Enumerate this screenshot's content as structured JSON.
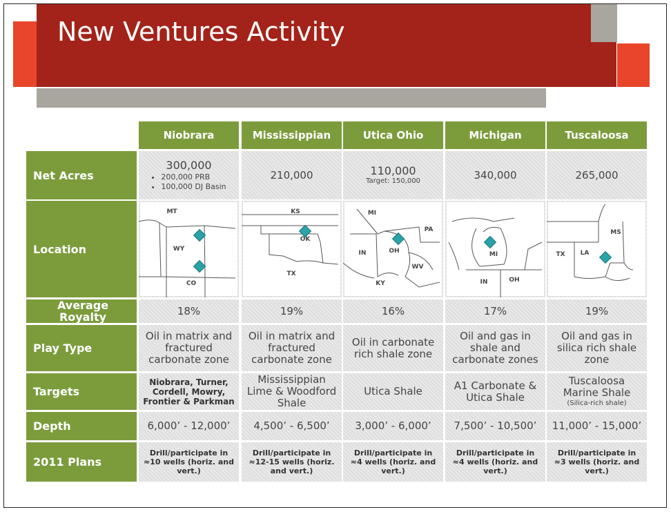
{
  "title": "New Ventures Activity",
  "table": {
    "columns": [
      "Niobrara",
      "Mississippian",
      "Utica Ohio",
      "Michigan",
      "Tuscaloosa"
    ],
    "rows": [
      {
        "label": "Net Acres",
        "cells": [
          {
            "main": "300,000",
            "notes": [
              "200,000 PRB",
              "100,000 DJ Basin"
            ]
          },
          "210,000",
          {
            "main": "110,000",
            "notes": [
              "Target: 150,000"
            ]
          },
          "340,000",
          "265,000"
        ]
      },
      {
        "label": "Location",
        "cells": [
          {
            "labels": [
              "MT",
              "WY",
              "CO"
            ]
          },
          {
            "labels": [
              "KS",
              "OK",
              "TX"
            ]
          },
          {
            "labels": [
              "MI",
              "PA",
              "IN",
              "OH",
              "WV",
              "KY"
            ]
          },
          {
            "labels": [
              "MI",
              "IN",
              "OH"
            ]
          },
          {
            "labels": [
              "MS",
              "TX",
              "LA"
            ]
          }
        ]
      },
      {
        "label": "Average Royalty",
        "cells": [
          "18%",
          "19%",
          "16%",
          "17%",
          "19%"
        ]
      },
      {
        "label": "Play Type",
        "cells": [
          "Oil in matrix and fractured carbonate zone",
          "Oil in matrix and fractured carbonate zone",
          "Oil in carbonate rich shale zone",
          "Oil and gas in shale and carbonate zones",
          "Oil and gas in silica rich shale zone"
        ]
      },
      {
        "label": "Targets",
        "cells": [
          {
            "bold": "Niobrara, Turner, Cordell, Mowry, Frontier & Parkman"
          },
          "Mississippian Lime & Woodford Shale",
          "Utica Shale",
          "A1 Carbonate & Utica Shale",
          {
            "main": "Tuscaloosa Marine Shale",
            "note": "(Silica-rich shale)"
          }
        ]
      },
      {
        "label": "Depth",
        "cells": [
          "6,000’ - 12,000’",
          "4,500’ - 6,500’",
          "3,000’ - 6,000’",
          "7,500’ - 10,500’",
          "11,000’ - 15,000’"
        ]
      },
      {
        "label": "2011 Plans",
        "cells": [
          {
            "bold": "Drill/participate in ≈10 wells (horiz. and vert.)"
          },
          {
            "bold": "Drill/participate in ≈12-15 wells (horiz. and vert.)"
          },
          {
            "bold": "Drill/participate in ≈4 wells (horiz. and vert.)"
          },
          {
            "bold": "Drill/participate in ≈4 wells (horiz. and vert.)"
          },
          {
            "bold": "Drill/participate in ≈3 wells (horiz. and vert.)"
          }
        ]
      }
    ]
  }
}
